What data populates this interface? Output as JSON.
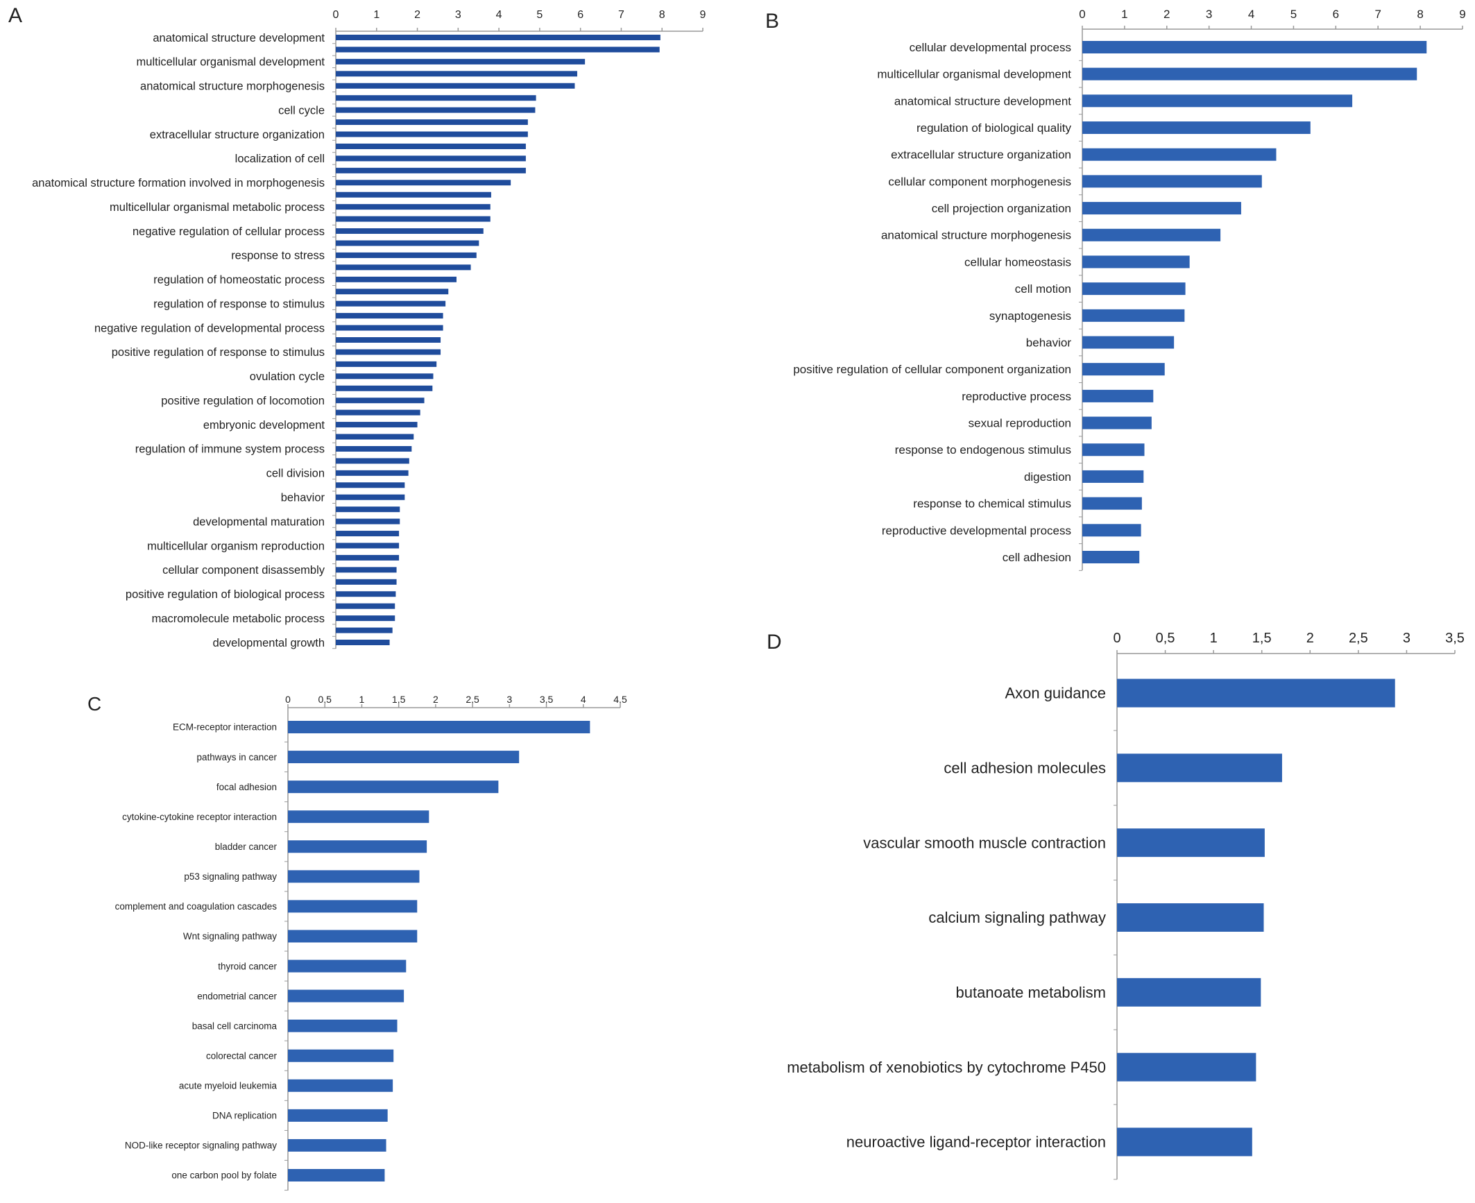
{
  "colors": {
    "bar_a": "#1f4c9c",
    "bar": "#2e62b2",
    "axis": "#999999",
    "text": "#222222"
  },
  "chart_data": [
    {
      "panel_label": "A",
      "type": "bar",
      "orientation": "horizontal",
      "xlim": [
        0,
        9
      ],
      "ticks": [
        "0",
        "1",
        "2",
        "3",
        "4",
        "5",
        "6",
        "7",
        "8",
        "9"
      ],
      "labels": [
        "anatomical structure development",
        "",
        "multicellular organismal development",
        "",
        "anatomical structure morphogenesis",
        "",
        "cell cycle",
        "",
        "extracellular structure organization",
        "",
        "localization of cell",
        "",
        "anatomical structure formation involved in morphogenesis",
        "",
        "multicellular organismal metabolic process",
        "",
        "negative regulation of cellular process",
        "",
        "response to stress",
        "",
        "regulation of homeostatic process",
        "",
        "regulation of response to stimulus",
        "",
        "negative regulation of developmental process",
        "",
        "positive regulation of response to stimulus",
        "",
        "ovulation cycle",
        "",
        "positive regulation of locomotion",
        "",
        "embryonic development",
        "",
        "regulation of immune system process",
        "",
        "cell division",
        "",
        "behavior",
        "",
        "developmental maturation",
        "",
        "multicellular organism reproduction",
        "",
        "cellular component disassembly",
        "",
        "positive regulation of biological process",
        "",
        "macromolecule metabolic process",
        "",
        "developmental growth"
      ],
      "values": [
        7.96,
        7.94,
        6.11,
        5.92,
        5.86,
        4.91,
        4.89,
        4.71,
        4.71,
        4.66,
        4.66,
        4.66,
        4.29,
        3.81,
        3.79,
        3.79,
        3.62,
        3.51,
        3.45,
        3.31,
        2.96,
        2.76,
        2.69,
        2.63,
        2.63,
        2.57,
        2.57,
        2.47,
        2.39,
        2.37,
        2.17,
        2.07,
        2.0,
        1.91,
        1.86,
        1.8,
        1.78,
        1.69,
        1.69,
        1.57,
        1.57,
        1.55,
        1.55,
        1.55,
        1.49,
        1.49,
        1.47,
        1.45,
        1.45,
        1.39,
        1.32
      ]
    },
    {
      "panel_label": "B",
      "type": "bar",
      "orientation": "horizontal",
      "xlim": [
        0,
        9
      ],
      "ticks": [
        "0",
        "1",
        "2",
        "3",
        "4",
        "5",
        "6",
        "7",
        "8",
        "9"
      ],
      "labels": [
        "cellular developmental process",
        "multicellular organismal development",
        "anatomical structure development",
        "regulation of biological quality",
        "extracellular structure organization",
        "cellular component morphogenesis",
        "cell projection organization",
        "anatomical structure morphogenesis",
        "cellular homeostasis",
        "cell motion",
        "synaptogenesis",
        "behavior",
        "positive regulation of cellular component organization",
        "reproductive process",
        "sexual reproduction",
        "response to endogenous stimulus",
        "digestion",
        "response to chemical stimulus",
        "reproductive developmental process",
        "cell adhesion"
      ],
      "values": [
        8.15,
        7.92,
        6.39,
        5.4,
        4.59,
        4.25,
        3.76,
        3.27,
        2.54,
        2.44,
        2.42,
        2.17,
        1.95,
        1.68,
        1.64,
        1.47,
        1.45,
        1.41,
        1.39,
        1.35
      ]
    },
    {
      "panel_label": "C",
      "type": "bar",
      "orientation": "horizontal",
      "xlim": [
        0,
        4.5
      ],
      "ticks": [
        "0",
        "0,5",
        "1",
        "1,5",
        "2",
        "2,5",
        "3",
        "3,5",
        "4",
        "4,5"
      ],
      "labels": [
        "ECM-receptor interaction",
        "pathways in cancer",
        "focal adhesion",
        "cytokine-cytokine receptor interaction",
        "bladder cancer",
        "p53 signaling pathway",
        "complement and coagulation cascades",
        "Wnt signaling pathway",
        "thyroid cancer",
        "endometrial cancer",
        "basal cell carcinoma",
        "colorectal cancer",
        "acute myeloid leukemia",
        "DNA replication",
        "NOD-like receptor signaling pathway",
        "one carbon pool by folate"
      ],
      "values": [
        4.09,
        3.13,
        2.85,
        1.91,
        1.88,
        1.78,
        1.75,
        1.75,
        1.6,
        1.57,
        1.48,
        1.43,
        1.42,
        1.35,
        1.33,
        1.31
      ]
    },
    {
      "panel_label": "D",
      "type": "bar",
      "orientation": "horizontal",
      "xlim": [
        0,
        3.5
      ],
      "ticks": [
        "0",
        "0,5",
        "1",
        "1,5",
        "2",
        "2,5",
        "3",
        "3,5"
      ],
      "labels": [
        "Axon guidance",
        "cell adhesion molecules",
        "vascular smooth muscle contraction",
        "calcium signaling pathway",
        "butanoate metabolism",
        "metabolism of xenobiotics by cytochrome P450",
        "neuroactive ligand-receptor interaction"
      ],
      "values": [
        2.88,
        1.71,
        1.53,
        1.52,
        1.49,
        1.44,
        1.4
      ]
    }
  ]
}
